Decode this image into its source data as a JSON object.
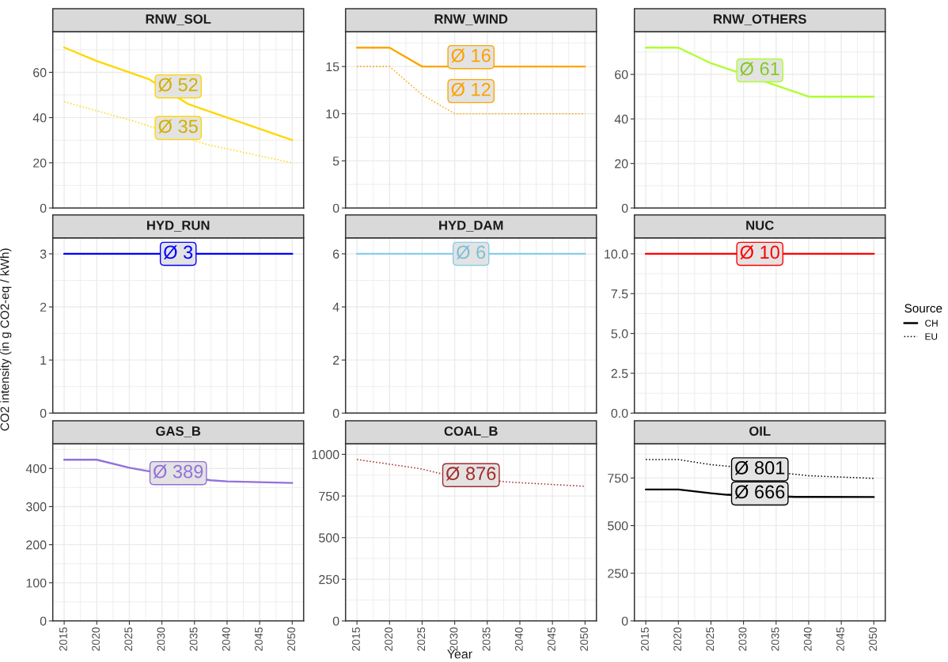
{
  "chart_data": [
    {
      "type": "line",
      "title": "RNW_SOL",
      "xlim": [
        2013.25,
        2051.75
      ],
      "xticks": [
        2015,
        2020,
        2025,
        2030,
        2035,
        2040,
        2045,
        2050
      ],
      "ylim": [
        0,
        78
      ],
      "yticks": [
        0,
        20,
        40,
        60
      ],
      "grid": true,
      "tick_labels": "y",
      "series": [
        {
          "color": "#ffd700",
          "line_style": "solid",
          "x": [
            2015,
            2020,
            2028,
            2034,
            2050
          ],
          "values": [
            71,
            65,
            57,
            46,
            30
          ]
        },
        {
          "color": "#ffd700",
          "line_style": "dotted",
          "x": [
            2015,
            2020,
            2025,
            2037,
            2050
          ],
          "values": [
            47,
            43,
            39,
            28,
            20
          ]
        }
      ],
      "annotations": [
        "Ø 52",
        "Ø 35"
      ]
    },
    {
      "type": "line",
      "title": "RNW_WIND",
      "xlim": [
        2013.25,
        2051.75
      ],
      "xticks": [
        2015,
        2020,
        2025,
        2030,
        2035,
        2040,
        2045,
        2050
      ],
      "ylim": [
        0,
        18.7
      ],
      "yticks": [
        0,
        5,
        10,
        15
      ],
      "grid": true,
      "tick_labels": "y",
      "series": [
        {
          "color": "#ffa500",
          "line_style": "solid",
          "x": [
            2015,
            2020,
            2025,
            2050
          ],
          "values": [
            17,
            17,
            15,
            15
          ]
        },
        {
          "color": "#ffa500",
          "line_style": "dotted",
          "x": [
            2015,
            2020,
            2025,
            2030,
            2050
          ],
          "values": [
            15,
            15,
            12,
            10,
            10
          ]
        }
      ],
      "annotations": [
        "Ø 16",
        "Ø 12"
      ]
    },
    {
      "type": "line",
      "title": "RNW_OTHERS",
      "xlim": [
        2013.25,
        2051.75
      ],
      "xticks": [
        2015,
        2020,
        2025,
        2030,
        2035,
        2040,
        2045,
        2050
      ],
      "ylim": [
        0,
        79.2
      ],
      "yticks": [
        0,
        20,
        40,
        60
      ],
      "grid": true,
      "tick_labels": "y",
      "series": [
        {
          "color": "#adff2f",
          "line_style": "solid",
          "x": [
            2015,
            2020,
            2025,
            2040,
            2050
          ],
          "values": [
            72,
            72,
            65,
            50,
            50
          ]
        }
      ],
      "annotations": [
        "Ø 61"
      ]
    },
    {
      "type": "line",
      "title": "HYD_RUN",
      "ylabel": "CO2 intensity (in g CO2-eq / kWh)",
      "xlim": [
        2013.25,
        2051.75
      ],
      "xticks": [
        2015,
        2020,
        2025,
        2030,
        2035,
        2040,
        2045,
        2050
      ],
      "ylim": [
        0,
        3.3
      ],
      "yticks": [
        0,
        1,
        2,
        3
      ],
      "grid": true,
      "tick_labels": "y",
      "series": [
        {
          "color": "#0000ff",
          "line_style": "solid",
          "x": [
            2015,
            2050
          ],
          "values": [
            3,
            3
          ]
        }
      ],
      "annotations": [
        "Ø 3"
      ]
    },
    {
      "type": "line",
      "title": "HYD_DAM",
      "xlim": [
        2013.25,
        2051.75
      ],
      "xticks": [
        2015,
        2020,
        2025,
        2030,
        2035,
        2040,
        2045,
        2050
      ],
      "ylim": [
        0,
        6.6
      ],
      "yticks": [
        0,
        2,
        4,
        6
      ],
      "grid": true,
      "tick_labels": "y",
      "series": [
        {
          "color": "#87ceeb",
          "line_style": "solid",
          "x": [
            2015,
            2050
          ],
          "values": [
            6,
            6
          ]
        }
      ],
      "annotations": [
        "Ø 6"
      ]
    },
    {
      "type": "line",
      "title": "NUC",
      "xlim": [
        2013.25,
        2051.75
      ],
      "xticks": [
        2015,
        2020,
        2025,
        2030,
        2035,
        2040,
        2045,
        2050
      ],
      "ylim": [
        0,
        11
      ],
      "yticks": [
        {
          "value": 0,
          "label": "0.0"
        },
        2.5,
        {
          "value": 5,
          "label": "5.0"
        },
        7.5,
        {
          "value": 10,
          "label": "10.0"
        }
      ],
      "grid": true,
      "tick_labels": "y",
      "series": [
        {
          "color": "#ff0000",
          "line_style": "solid",
          "x": [
            2015,
            2050
          ],
          "values": [
            10,
            10
          ]
        }
      ],
      "annotations": [
        "Ø 10"
      ]
    },
    {
      "type": "line",
      "title": "GAS_B",
      "xlim": [
        2013.25,
        2051.75
      ],
      "xticks": [
        2015,
        2020,
        2025,
        2030,
        2035,
        2040,
        2045,
        2050
      ],
      "ylim": [
        0,
        465
      ],
      "yticks": [
        0,
        100,
        200,
        300,
        400
      ],
      "grid": true,
      "series": [
        {
          "color": "#9370db",
          "line_style": "solid",
          "x": [
            2015,
            2020,
            2025,
            2027.5,
            2037.5,
            2040,
            2045,
            2050
          ],
          "values": [
            423,
            423,
            402,
            394,
            369,
            366,
            364,
            362
          ]
        }
      ],
      "annotations": [
        "Ø 389"
      ]
    },
    {
      "type": "line",
      "title": "COAL_B",
      "xlabel": "Year",
      "xlim": [
        2013.25,
        2051.75
      ],
      "xticks": [
        2015,
        2020,
        2025,
        2030,
        2035,
        2040,
        2045,
        2050
      ],
      "ylim": [
        0,
        1064
      ],
      "yticks": [
        0,
        250,
        500,
        750,
        1000
      ],
      "grid": true,
      "series": [
        {
          "color": "#a52a2a",
          "line_style": "dotted",
          "x": [
            2015,
            2020,
            2025,
            2027.5,
            2037.5,
            2040,
            2045,
            2050
          ],
          "values": [
            969,
            941,
            912,
            887,
            836,
            830,
            819,
            808
          ]
        }
      ],
      "annotations": [
        "Ø 876"
      ]
    },
    {
      "type": "line",
      "title": "OIL",
      "xlim": [
        2013.25,
        2051.75
      ],
      "xticks": [
        2015,
        2020,
        2025,
        2030,
        2035,
        2040,
        2045,
        2050
      ],
      "ylim": [
        0,
        930
      ],
      "yticks": [
        0,
        250,
        500,
        750
      ],
      "grid": true,
      "legend": "right",
      "legend_title": "Source",
      "series": [
        {
          "name": "CH",
          "color": "#000000",
          "line_style": "solid",
          "x": [
            2015,
            2020,
            2025,
            2027.5,
            2038,
            2050
          ],
          "values": [
            690,
            690,
            670,
            662,
            651,
            650
          ]
        },
        {
          "name": "EU",
          "color": "#000000",
          "line_style": "dotted",
          "x": [
            2015,
            2020,
            2025,
            2027.5,
            2037.5,
            2040,
            2045,
            2050
          ],
          "values": [
            847,
            847,
            820,
            812,
            771,
            762,
            755,
            748
          ]
        }
      ],
      "annotations": [
        "Ø 666",
        "Ø 801"
      ]
    }
  ]
}
